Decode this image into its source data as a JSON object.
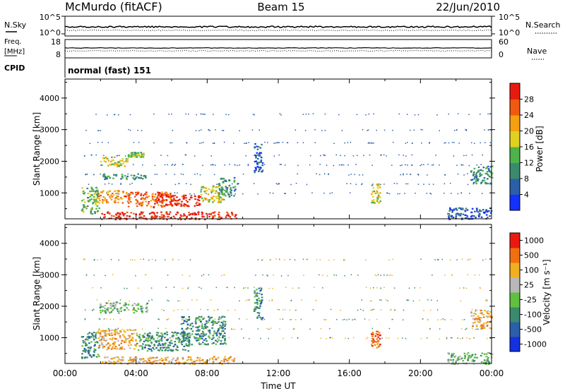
{
  "header": {
    "station": "McMurdo (fitACF)",
    "beam": "Beam 15",
    "date": "22/Jun/2010"
  },
  "top_panels": {
    "nsky_label": "N.Sky",
    "nsearch_label": "N.Search",
    "noise_ticks": [
      "10^5",
      "10^0"
    ],
    "freq_label_1": "Freq.",
    "freq_label_2": "[MHz]",
    "freq_ticks": [
      "18",
      "8"
    ],
    "nave_label": "Nave",
    "nave_ticks": [
      "60",
      "0"
    ],
    "cpid_label": "CPID",
    "cpid_value": "normal (fast) 151"
  },
  "chart_data": [
    {
      "type": "heatmap",
      "name": "power",
      "xlabel": "",
      "ylabel": "Slant Range [km]",
      "xlim": [
        "00:00",
        "24:00"
      ],
      "ylim": [
        180,
        4600
      ],
      "yticks": [
        "1000",
        "2000",
        "3000",
        "4000"
      ],
      "colorbar": {
        "label": "Power [dB]",
        "ticks": [
          "4",
          "8",
          "12",
          "16",
          "20",
          "24",
          "28"
        ],
        "colors": [
          "#1530ff",
          "#2b5fa8",
          "#3b8a6e",
          "#4db34a",
          "#e0d020",
          "#f5a010",
          "#f05a10",
          "#e81a10"
        ]
      },
      "regions": [
        {
          "t0": 2.0,
          "t1": 9.6,
          "r0": 180,
          "r1": 420,
          "level": 7
        },
        {
          "t0": 0.9,
          "t1": 1.9,
          "r0": 350,
          "r1": 1200,
          "level": 3
        },
        {
          "t0": 1.8,
          "t1": 3.3,
          "r0": 700,
          "r1": 1100,
          "level": 5
        },
        {
          "t0": 3.3,
          "t1": 6.0,
          "r0": 560,
          "r1": 1050,
          "level": 6
        },
        {
          "t0": 5.0,
          "t1": 7.6,
          "r0": 600,
          "r1": 950,
          "level": 7
        },
        {
          "t0": 7.6,
          "t1": 8.9,
          "r0": 700,
          "r1": 1250,
          "level": 4
        },
        {
          "t0": 8.6,
          "t1": 9.6,
          "r0": 900,
          "r1": 1500,
          "level": 2
        },
        {
          "t0": 1.9,
          "t1": 4.6,
          "r0": 1450,
          "r1": 1620,
          "level": 2
        },
        {
          "t0": 1.9,
          "t1": 3.5,
          "r0": 1850,
          "r1": 2150,
          "level": 4
        },
        {
          "t0": 3.5,
          "t1": 4.4,
          "r0": 2150,
          "r1": 2300,
          "level": 3
        },
        {
          "t0": 10.6,
          "t1": 11.1,
          "r0": 1600,
          "r1": 2600,
          "level": 1
        },
        {
          "t0": 17.2,
          "t1": 17.7,
          "r0": 700,
          "r1": 1300,
          "level": 4
        },
        {
          "t0": 22.8,
          "t1": 24.0,
          "r0": 1300,
          "r1": 1900,
          "level": 2
        },
        {
          "t0": 21.5,
          "t1": 24.0,
          "r0": 180,
          "r1": 550,
          "level": 1
        }
      ]
    },
    {
      "type": "heatmap",
      "name": "velocity",
      "xlabel": "Time UT",
      "ylabel": "Slant Range [km]",
      "xlim": [
        "00:00",
        "24:00"
      ],
      "xticks": [
        "00:00",
        "04:00",
        "08:00",
        "12:00",
        "16:00",
        "20:00",
        "00:00"
      ],
      "ylim": [
        180,
        4600
      ],
      "yticks": [
        "1000",
        "2000",
        "3000",
        "4000"
      ],
      "colorbar": {
        "label": "Velocity [m s⁻¹]",
        "ticks": [
          "1000",
          "500",
          "100",
          "25",
          "-25",
          "-100",
          "-500",
          "-1000"
        ],
        "colors": [
          "#1530e0",
          "#2b5fa8",
          "#3b8a6e",
          "#60c040",
          "#b8b8b8",
          "#f0b020",
          "#f07010",
          "#e81a10"
        ]
      },
      "regions": [
        {
          "t0": 2.0,
          "t1": 9.6,
          "r0": 180,
          "r1": 420,
          "level": 5
        },
        {
          "t0": 0.9,
          "t1": 1.9,
          "r0": 350,
          "r1": 1200,
          "level": 2
        },
        {
          "t0": 1.8,
          "t1": 4.0,
          "r0": 650,
          "r1": 1300,
          "level": 5
        },
        {
          "t0": 4.0,
          "t1": 7.0,
          "r0": 600,
          "r1": 1200,
          "level": 2
        },
        {
          "t0": 6.5,
          "t1": 9.0,
          "r0": 800,
          "r1": 1700,
          "level": 2
        },
        {
          "t0": 1.9,
          "t1": 4.6,
          "r0": 1800,
          "r1": 2150,
          "level": 3
        },
        {
          "t0": 10.6,
          "t1": 11.1,
          "r0": 1600,
          "r1": 2600,
          "level": 2
        },
        {
          "t0": 17.2,
          "t1": 17.7,
          "r0": 700,
          "r1": 1300,
          "level": 6
        },
        {
          "t0": 22.8,
          "t1": 24.0,
          "r0": 1300,
          "r1": 1900,
          "level": 5
        },
        {
          "t0": 21.5,
          "t1": 24.0,
          "r0": 180,
          "r1": 550,
          "level": 3
        }
      ]
    }
  ]
}
